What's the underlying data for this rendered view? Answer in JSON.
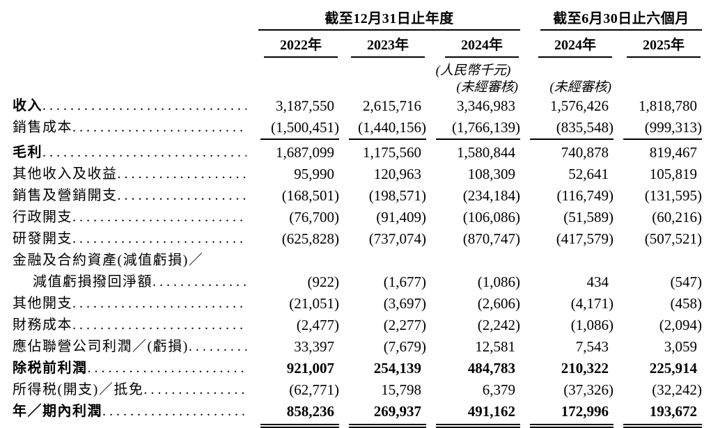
{
  "table": {
    "unit_note": "(人民幣千元)",
    "unaudited_note": "(未經審核)",
    "groups": [
      {
        "title": "截至12月31日止年度",
        "columns": 3
      },
      {
        "title": "截至6月30日止六個月",
        "columns": 2
      }
    ],
    "columns": [
      {
        "label": "2022年",
        "group": "截至12月31日止年度"
      },
      {
        "label": "2023年",
        "group": "截至12月31日止年度"
      },
      {
        "label": "2024年",
        "group": "截至12月31日止年度"
      },
      {
        "label": "2024年",
        "group": "截至6月30日止六個月",
        "unaudited": true
      },
      {
        "label": "2025年",
        "group": "截至6月30日止六個月",
        "unaudited": true
      }
    ],
    "rows": [
      {
        "label": "收入",
        "bold_label": true,
        "values": [
          "3,187,550",
          "2,615,716",
          "3,346,983",
          "1,576,426",
          "1,818,780"
        ]
      },
      {
        "label": "銷售成本",
        "rule": "single",
        "values": [
          "(1,500,451)",
          "(1,440,156)",
          "(1,766,139)",
          "(835,548)",
          "(999,313)"
        ]
      },
      {
        "label": "毛利",
        "bold_label": true,
        "values": [
          "1,687,099",
          "1,175,560",
          "1,580,844",
          "740,878",
          "819,467"
        ]
      },
      {
        "label": "其他收入及收益",
        "values": [
          "95,990",
          "120,963",
          "108,309",
          "52,641",
          "105,819"
        ]
      },
      {
        "label": "銷售及營銷開支",
        "values": [
          "(168,501)",
          "(198,571)",
          "(234,184)",
          "(116,749)",
          "(131,595)"
        ]
      },
      {
        "label": "行政開支",
        "values": [
          "(76,700)",
          "(91,409)",
          "(106,086)",
          "(51,589)",
          "(60,216)"
        ]
      },
      {
        "label": "研發開支",
        "values": [
          "(625,828)",
          "(737,074)",
          "(870,747)",
          "(417,579)",
          "(507,521)"
        ]
      },
      {
        "label": "金融及合約資產(減值虧損)／",
        "dots": false,
        "values": null
      },
      {
        "label": "減值虧損撥回淨額",
        "indent": true,
        "values": [
          "(922)",
          "(1,677)",
          "(1,086)",
          "434",
          "(547)"
        ]
      },
      {
        "label": "其他開支",
        "values": [
          "(21,051)",
          "(3,697)",
          "(2,606)",
          "(4,171)",
          "(458)"
        ]
      },
      {
        "label": "財務成本",
        "values": [
          "(2,477)",
          "(2,277)",
          "(2,242)",
          "(1,086)",
          "(2,094)"
        ]
      },
      {
        "label": "應佔聯營公司利潤／(虧損)",
        "values": [
          "33,397",
          "(7,679)",
          "12,581",
          "7,543",
          "3,059"
        ]
      },
      {
        "label": "除税前利潤",
        "bold_label": true,
        "bold_values": true,
        "values": [
          "921,007",
          "254,139",
          "484,783",
          "210,322",
          "225,914"
        ]
      },
      {
        "label": "所得税(開支)／抵免",
        "values": [
          "(62,771)",
          "15,798",
          "6,379",
          "(37,326)",
          "(32,242)"
        ]
      },
      {
        "label": "年／期內利潤",
        "bold_label": true,
        "bold_values": true,
        "rule": "double",
        "values": [
          "858,236",
          "269,937",
          "491,162",
          "172,996",
          "193,672"
        ]
      }
    ]
  }
}
